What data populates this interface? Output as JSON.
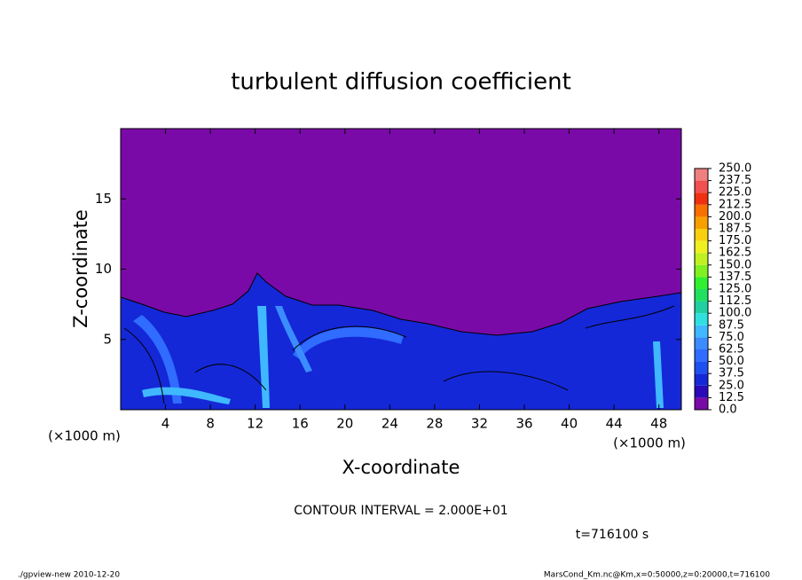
{
  "chart_data": {
    "type": "contour",
    "title": "turbulent diffusion coefficient",
    "xlabel": "X-coordinate",
    "ylabel": "Z-coordinate",
    "x_unit": "(×1000 m)",
    "xlim": [
      0,
      50
    ],
    "xticks": [
      4,
      8,
      12,
      16,
      20,
      24,
      28,
      32,
      36,
      40,
      44,
      48
    ],
    "ylim": [
      0,
      20
    ],
    "yticks": [
      5,
      10,
      15
    ],
    "levels": [
      {
        "value": 0,
        "label": "0.0"
      },
      {
        "value": 12.5,
        "label": "12.5"
      },
      {
        "value": 25,
        "label": "25.0"
      },
      {
        "value": 37.5,
        "label": "37.5"
      },
      {
        "value": 50,
        "label": "50.0"
      },
      {
        "value": 62.5,
        "label": "62.5"
      },
      {
        "value": 75,
        "label": "75.0"
      },
      {
        "value": 87.5,
        "label": "87.5"
      },
      {
        "value": 100,
        "label": "100.0"
      },
      {
        "value": 112.5,
        "label": "112.5"
      },
      {
        "value": 125,
        "label": "125.0"
      },
      {
        "value": 137.5,
        "label": "137.5"
      },
      {
        "value": 150,
        "label": "150.0"
      },
      {
        "value": 162.5,
        "label": "162.5"
      },
      {
        "value": 175,
        "label": "175.0"
      },
      {
        "value": 187.5,
        "label": "187.5"
      },
      {
        "value": 200,
        "label": "200.0"
      },
      {
        "value": 212.5,
        "label": "212.5"
      },
      {
        "value": 225,
        "label": "225.0"
      },
      {
        "value": 237.5,
        "label": "237.5"
      },
      {
        "value": 250,
        "label": "250.0"
      }
    ],
    "level_colors": [
      "#7a0aa8",
      "#2a0ab8",
      "#1428d8",
      "#1e4ff0",
      "#2f6cff",
      "#3b8cff",
      "#40b8ff",
      "#30e0e0",
      "#20d0a0",
      "#20e060",
      "#30f030",
      "#80f020",
      "#c0f020",
      "#f0f020",
      "#f8d010",
      "#f8a000",
      "#f87000",
      "#f03010",
      "#f05050",
      "#f08080"
    ],
    "annotations": [
      "CONTOUR INTERVAL = 2.000E+01",
      "t=716100 s",
      "./gpview-new   2010-12-20",
      "MarsCond_Km.nc@Km,x=0:50000,z=0:20000,t=716100"
    ]
  }
}
